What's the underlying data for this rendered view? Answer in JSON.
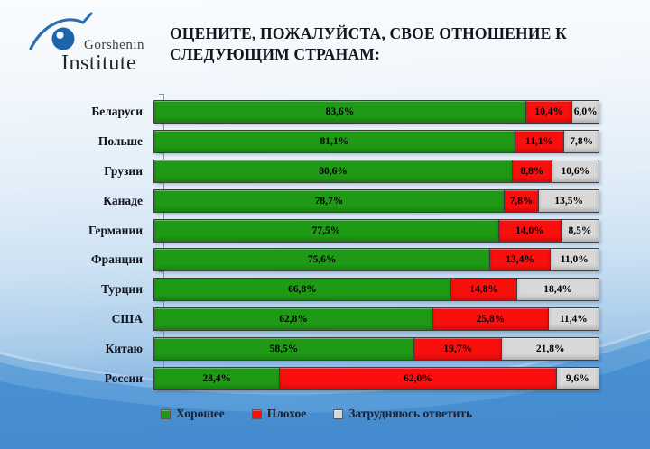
{
  "header": {
    "logo_line1": "Gorshenin",
    "logo_line2": "Institute",
    "title_line1": "ОЦЕНИТЕ, ПОЖАЛУЙСТА, СВОЕ ОТНОШЕНИЕ К",
    "title_line2": "СЛЕДУЮЩИМ СТРАНАМ:"
  },
  "chart_data": {
    "type": "bar",
    "orientation": "horizontal",
    "stacked": true,
    "unit": "%",
    "xlim": [
      0,
      100
    ],
    "grid": false,
    "legend_position": "bottom",
    "categories": [
      "Беларуси",
      "Польше",
      "Грузии",
      "Канаде",
      "Германии",
      "Франции",
      "Турции",
      "США",
      "Китаю",
      "России"
    ],
    "series": [
      {
        "name": "Хорошее",
        "color": "#1f9a16",
        "values": [
          83.6,
          81.1,
          80.6,
          78.7,
          77.5,
          75.6,
          66.8,
          62.8,
          58.5,
          28.4
        ]
      },
      {
        "name": "Плохое",
        "color": "#fa0f0f",
        "values": [
          10.4,
          11.1,
          8.8,
          7.8,
          14.0,
          13.4,
          14.8,
          25.8,
          19.7,
          62.0
        ]
      },
      {
        "name": "Затрудняюсь ответить",
        "color": "#d8d8d8",
        "values": [
          6.0,
          7.8,
          10.6,
          13.5,
          8.5,
          11.0,
          18.4,
          11.4,
          21.8,
          9.6
        ]
      }
    ],
    "value_label_format": "comma-decimal-percent"
  },
  "colors": {
    "good": "#1f9a16",
    "bad": "#fa0f0f",
    "undecided": "#d8d8d8",
    "background_bottom": "#4d92d2"
  }
}
